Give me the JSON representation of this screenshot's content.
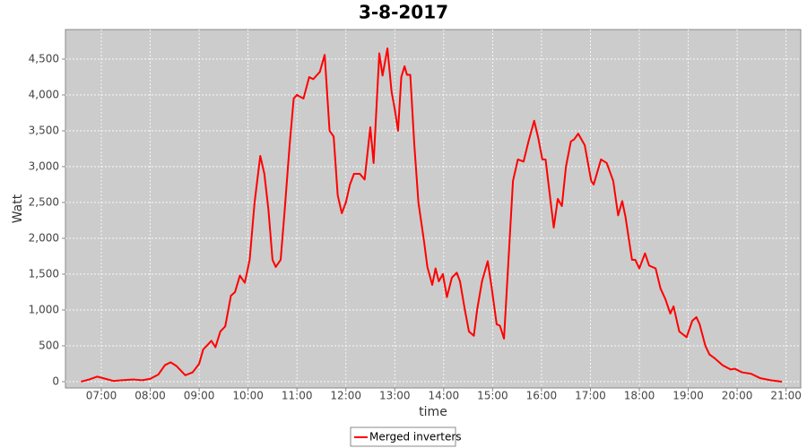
{
  "chart_data": {
    "type": "line",
    "title": "3-8-2017",
    "x_label": "time",
    "y_label": "Watt",
    "x": [
      "06:35",
      "06:45",
      "06:55",
      "07:05",
      "07:15",
      "07:25",
      "07:40",
      "07:50",
      "08:00",
      "08:10",
      "08:18",
      "08:25",
      "08:32",
      "08:43",
      "08:52",
      "09:00",
      "09:05",
      "09:11",
      "09:15",
      "09:20",
      "09:26",
      "09:32",
      "09:39",
      "09:44",
      "09:50",
      "09:56",
      "10:02",
      "10:08",
      "10:15",
      "10:20",
      "10:25",
      "10:30",
      "10:34",
      "10:40",
      "10:45",
      "10:51",
      "10:56",
      "11:00",
      "11:08",
      "11:15",
      "11:20",
      "11:28",
      "11:34",
      "11:40",
      "11:45",
      "11:50",
      "11:55",
      "12:00",
      "12:05",
      "12:10",
      "12:17",
      "12:23",
      "12:30",
      "12:34",
      "12:41",
      "12:45",
      "12:51",
      "12:56",
      "13:00",
      "13:04",
      "13:08",
      "13:12",
      "13:15",
      "13:19",
      "13:24",
      "13:29",
      "13:36",
      "13:40",
      "13:46",
      "13:50",
      "13:54",
      "13:59",
      "14:04",
      "14:10",
      "14:16",
      "14:20",
      "14:26",
      "14:31",
      "14:37",
      "14:41",
      "14:47",
      "14:54",
      "14:59",
      "15:05",
      "15:09",
      "15:14",
      "15:19",
      "15:25",
      "15:31",
      "15:38",
      "15:44",
      "15:51",
      "15:56",
      "16:01",
      "16:05",
      "16:15",
      "16:20",
      "16:25",
      "16:30",
      "16:36",
      "16:40",
      "16:45",
      "16:53",
      "17:01",
      "17:04",
      "17:13",
      "17:20",
      "17:28",
      "17:34",
      "17:39",
      "17:43",
      "17:51",
      "17:55",
      "18:00",
      "18:07",
      "18:12",
      "18:20",
      "18:26",
      "18:32",
      "18:38",
      "18:42",
      "18:49",
      "18:58",
      "19:05",
      "19:10",
      "19:14",
      "19:21",
      "19:26",
      "19:32",
      "19:42",
      "19:52",
      "19:57",
      "20:06",
      "20:17",
      "20:28",
      "20:41",
      "20:55"
    ],
    "series": [
      {
        "name": "Merged inverters",
        "color": "#ff0000",
        "values": [
          0,
          30,
          70,
          40,
          10,
          20,
          30,
          20,
          40,
          100,
          230,
          270,
          220,
          90,
          130,
          250,
          450,
          520,
          570,
          480,
          700,
          770,
          1200,
          1250,
          1480,
          1380,
          1700,
          2500,
          3150,
          2900,
          2400,
          1700,
          1600,
          1700,
          2400,
          3300,
          3950,
          4000,
          3950,
          4250,
          4220,
          4320,
          4560,
          3500,
          3420,
          2600,
          2350,
          2500,
          2750,
          2900,
          2900,
          2820,
          3550,
          3050,
          4580,
          4270,
          4650,
          4050,
          3800,
          3500,
          4250,
          4400,
          4280,
          4280,
          3300,
          2500,
          1950,
          1600,
          1350,
          1580,
          1400,
          1500,
          1180,
          1450,
          1520,
          1400,
          1000,
          700,
          640,
          1000,
          1400,
          1680,
          1300,
          800,
          780,
          600,
          1600,
          2800,
          3100,
          3070,
          3350,
          3640,
          3400,
          3100,
          3100,
          2150,
          2550,
          2450,
          3000,
          3350,
          3380,
          3460,
          3300,
          2800,
          2750,
          3100,
          3050,
          2800,
          2320,
          2520,
          2300,
          1700,
          1700,
          1580,
          1790,
          1620,
          1580,
          1300,
          1150,
          950,
          1050,
          700,
          620,
          850,
          900,
          800,
          500,
          380,
          330,
          230,
          170,
          180,
          130,
          110,
          50,
          20,
          0
        ]
      }
    ],
    "xlim": [
      "06:16",
      "21:18"
    ],
    "xticks": [
      "07:00",
      "08:00",
      "09:00",
      "10:00",
      "11:00",
      "12:00",
      "13:00",
      "14:00",
      "15:00",
      "16:00",
      "17:00",
      "18:00",
      "19:00",
      "20:00",
      "21:00"
    ],
    "ylim": [
      -88,
      4912
    ],
    "yticks": [
      0,
      500,
      {
        "value": 1000,
        "label": "1,000"
      },
      {
        "value": 1500,
        "label": "1,500"
      },
      {
        "value": 2000,
        "label": "2,000"
      },
      {
        "value": 2500,
        "label": "2,500"
      },
      {
        "value": 3000,
        "label": "3,000"
      },
      {
        "value": 3500,
        "label": "3,500"
      },
      {
        "value": 4000,
        "label": "4,000"
      },
      {
        "value": 4500,
        "label": "4,500"
      }
    ],
    "grid": true,
    "legend": "bottom",
    "plot_background": "#cccccc"
  }
}
